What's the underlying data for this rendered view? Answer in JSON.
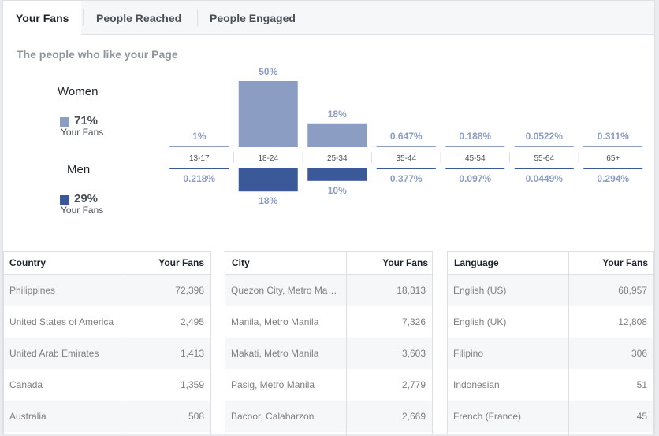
{
  "tabs": [
    {
      "label": "Your Fans",
      "active": true
    },
    {
      "label": "People Reached",
      "active": false
    },
    {
      "label": "People Engaged",
      "active": false
    }
  ],
  "subtitle": "The people who like your Page",
  "women": {
    "label": "Women",
    "percent": "71%",
    "sub": "Your Fans",
    "color": "#8b9dc3"
  },
  "men": {
    "label": "Men",
    "percent": "29%",
    "sub": "Your Fans",
    "color": "#3b5998"
  },
  "chart_data": {
    "type": "bar",
    "categories": [
      "13-17",
      "18-24",
      "25-34",
      "35-44",
      "45-54",
      "55-64",
      "65+"
    ],
    "series": [
      {
        "name": "Women",
        "values": [
          1,
          50,
          18,
          0.647,
          0.188,
          0.0522,
          0.311
        ],
        "labels": [
          "1%",
          "50%",
          "18%",
          "0.647%",
          "0.188%",
          "0.0522%",
          "0.311%"
        ],
        "color": "#8b9dc3"
      },
      {
        "name": "Men",
        "values": [
          0.218,
          18,
          10,
          0.377,
          0.097,
          0.0449,
          0.294
        ],
        "labels": [
          "0.218%",
          "18%",
          "10%",
          "0.377%",
          "0.097%",
          "0.0449%",
          "0.294%"
        ],
        "color": "#3b5998"
      }
    ],
    "ylim": [
      0,
      50
    ]
  },
  "tables": [
    {
      "col1": "Country",
      "col2": "Your Fans",
      "rows": [
        {
          "name": "Philippines",
          "value": "72,398"
        },
        {
          "name": "United States of America",
          "value": "2,495"
        },
        {
          "name": "United Arab Emirates",
          "value": "1,413"
        },
        {
          "name": "Canada",
          "value": "1,359"
        },
        {
          "name": "Australia",
          "value": "508"
        }
      ]
    },
    {
      "col1": "City",
      "col2": "Your Fans",
      "rows": [
        {
          "name": "Quezon City, Metro Manila",
          "value": "18,313"
        },
        {
          "name": "Manila, Metro Manila",
          "value": "7,326"
        },
        {
          "name": "Makati, Metro Manila",
          "value": "3,603"
        },
        {
          "name": "Pasig, Metro Manila",
          "value": "2,779"
        },
        {
          "name": "Bacoor, Calabarzon",
          "value": "2,669"
        }
      ]
    },
    {
      "col1": "Language",
      "col2": "Your Fans",
      "rows": [
        {
          "name": "English (US)",
          "value": "68,957"
        },
        {
          "name": "English (UK)",
          "value": "12,808"
        },
        {
          "name": "Filipino",
          "value": "306"
        },
        {
          "name": "Indonesian",
          "value": "51"
        },
        {
          "name": "French (France)",
          "value": "45"
        }
      ]
    }
  ]
}
